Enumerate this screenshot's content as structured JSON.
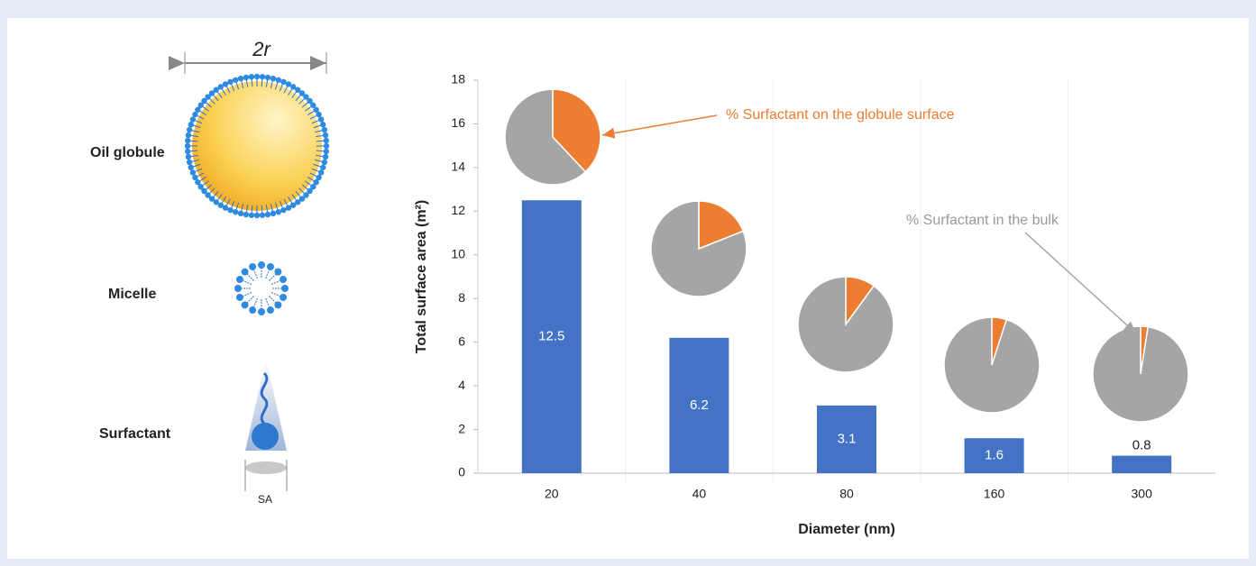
{
  "diagram": {
    "width_label": "2r",
    "globule_label": "Oil globule",
    "micelle_label": "Micelle",
    "surfactant_label": "Surfactant",
    "area_label": "SA"
  },
  "chart_data": [
    {
      "type": "bar",
      "categories": [
        "20",
        "40",
        "80",
        "160",
        "300"
      ],
      "values": [
        12.5,
        6.2,
        3.1,
        1.6,
        0.8
      ],
      "color": "#4472c4",
      "ylim": [
        0,
        18
      ],
      "yticks": [
        0,
        2,
        4,
        6,
        8,
        10,
        12,
        14,
        16,
        18
      ],
      "xlabel": "Diameter (nm)",
      "ylabel": "Total surface area (m²)",
      "xgrid": true
    },
    {
      "type": "pie",
      "labels": [
        "% Surfactant on the globule surface",
        "% Surfactant in the bulk"
      ],
      "colors": [
        "#ed7d31",
        "#a5a5a5"
      ],
      "values": [
        [
          38,
          62
        ],
        [
          19,
          81
        ],
        [
          10,
          90
        ],
        [
          5,
          95
        ],
        [
          2.5,
          97.5
        ]
      ]
    }
  ]
}
